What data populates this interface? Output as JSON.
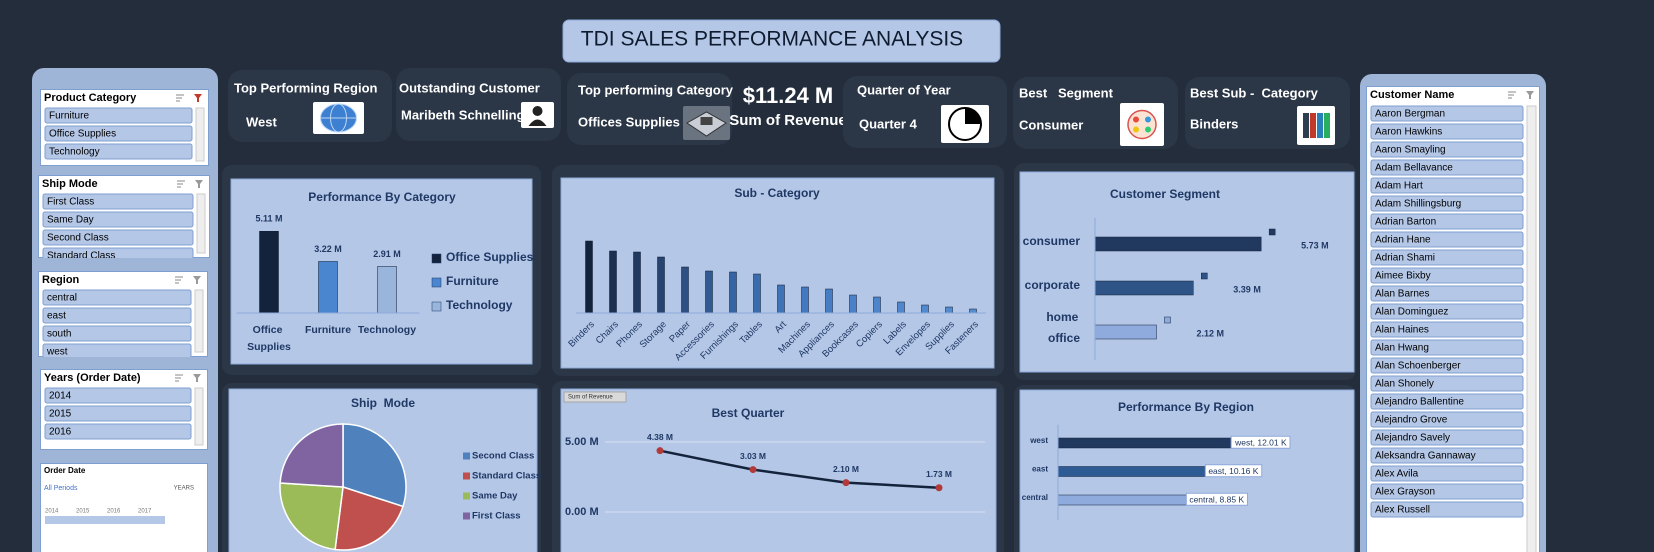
{
  "header": {
    "title": "TDI SALES PERFORMANCE ANALYSIS"
  },
  "kpis": [
    {
      "label": "Top Performing Region",
      "value": "West"
    },
    {
      "label": "Outstanding Customer",
      "value": "Maribeth Schnelling"
    },
    {
      "label": "Top performing Category",
      "value": "Offices Supplies"
    },
    {
      "label": "Sum of Revenue",
      "value": "$11.24 M"
    },
    {
      "label": "Quarter of Year",
      "value": "Quarter 4"
    },
    {
      "label": "Best   Segment",
      "value": "Consumer"
    },
    {
      "label": "Best Sub -  Category",
      "value": "Binders"
    }
  ],
  "slicers": [
    {
      "title": "Product Category",
      "items": [
        "Furniture",
        "Office Supplies",
        "Technology"
      ]
    },
    {
      "title": "Ship Mode",
      "items": [
        "First Class",
        "Same Day",
        "Second Class",
        "Standard Class"
      ]
    },
    {
      "title": "Region",
      "items": [
        "central",
        "east",
        "south",
        "west"
      ]
    },
    {
      "title": "Years (Order Date)",
      "items": [
        "2014",
        "2015",
        "2016"
      ]
    }
  ],
  "timeline": {
    "title": "Order Date",
    "period": "All Periods",
    "unit": "YEARS",
    "years": [
      "2014",
      "2015",
      "2016",
      "2017"
    ]
  },
  "customers": {
    "title": "Customer Name",
    "items": [
      "Aaron Bergman",
      "Aaron Hawkins",
      "Aaron Smayling",
      "Adam Bellavance",
      "Adam Hart",
      "Adam Shillingsburg",
      "Adrian Barton",
      "Adrian Hane",
      "Adrian Shami",
      "Aimee Bixby",
      "Alan Barnes",
      "Alan Dominguez",
      "Alan Haines",
      "Alan Hwang",
      "Alan Schoenberger",
      "Alan Shonely",
      "Alejandro Ballentine",
      "Alejandro Grove",
      "Alejandro Savely",
      "Aleksandra Gannaway",
      "Alex Avila",
      "Alex Grayson",
      "Alex Russell"
    ]
  },
  "chart_data": [
    {
      "type": "bar",
      "title": "Performance By Category",
      "categories": [
        "Office Supplies",
        "Furniture",
        "Technology"
      ],
      "values": [
        5.11,
        3.22,
        2.91
      ],
      "value_labels": [
        "5.11 M",
        "3.22 M",
        "2.91 M"
      ],
      "colors": [
        "#14233c",
        "#4a86d0",
        "#9ab5db"
      ],
      "legend": "right"
    },
    {
      "type": "bar",
      "title": "Sub - Category",
      "categories": [
        "Binders",
        "Chairs",
        "Phones",
        "Storage",
        "Paper",
        "Accessories",
        "Furnishings",
        "Tables",
        "Art",
        "Machines",
        "Appliances",
        "Bookcases",
        "Copiers",
        "Labels",
        "Envelopes",
        "Supplies",
        "Fasteners"
      ],
      "values": [
        1.44,
        1.24,
        1.22,
        1.12,
        0.92,
        0.84,
        0.82,
        0.78,
        0.56,
        0.52,
        0.48,
        0.36,
        0.32,
        0.22,
        0.16,
        0.12,
        0.08
      ],
      "colors": [
        "#14233c",
        "#1b2f50",
        "#22395f",
        "#27436f",
        "#2d4f82",
        "#325a93",
        "#3664a2",
        "#3a6cad",
        "#3f73b7",
        "#4479bf",
        "#477dc4",
        "#4a81c8",
        "#4d84cb",
        "#4f86cc",
        "#5189ce",
        "#538bcf",
        "#558dd0"
      ]
    },
    {
      "type": "barh",
      "title": "Customer Segment",
      "categories": [
        "consumer",
        "corporate",
        "home office"
      ],
      "values": [
        5.73,
        3.39,
        2.12
      ],
      "value_labels": [
        "5.73 M",
        "3.39 M",
        "2.12 M"
      ],
      "colors": [
        "#22395f",
        "#2e5487",
        "#8faadc"
      ]
    },
    {
      "type": "pie",
      "title": "Ship  Mode",
      "categories": [
        "Second Class",
        "Standard Class",
        "Same Day",
        "First Class"
      ],
      "values": [
        30,
        22,
        24,
        24
      ],
      "colors": [
        "#4f81bd",
        "#c0504d",
        "#9bbb59",
        "#8064a2"
      ],
      "legend": "right"
    },
    {
      "type": "line",
      "title": "Best Quarter",
      "button": "Sum of Revenue",
      "categories": [
        null,
        null,
        null,
        null
      ],
      "values": [
        4.38,
        3.03,
        2.1,
        1.73
      ],
      "value_labels": [
        "4.38 M",
        "3.03 M",
        "2.10 M",
        "1.73 M"
      ],
      "ylim": [
        0,
        5
      ],
      "yticks": [
        {
          "value": 5,
          "label": "5.00 M"
        },
        {
          "value": 0,
          "label": "0.00 M"
        }
      ],
      "grid": true,
      "color": "#14233c",
      "marker_color": "#b23a3a"
    },
    {
      "type": "barh",
      "title": "Performance By Region",
      "categories": [
        "west",
        "east",
        "central"
      ],
      "values": [
        12.01,
        10.16,
        8.85
      ],
      "value_labels": [
        "west, 12.01 K",
        "east, 10.16 K",
        "central, 8.85 K"
      ],
      "colors": [
        "#22395f",
        "#2e5b93",
        "#8faadc"
      ]
    }
  ]
}
